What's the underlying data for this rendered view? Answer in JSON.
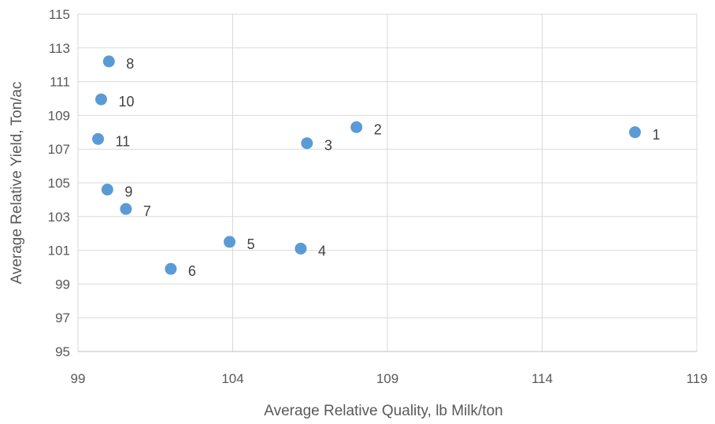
{
  "chart_data": {
    "type": "scatter",
    "title": "",
    "xlabel": "Average Relative Quality, lb Milk/ton",
    "ylabel": "Average Relative Yield, Ton/ac",
    "xlim": [
      99,
      119
    ],
    "ylim": [
      95,
      115
    ],
    "x_ticks": [
      99,
      104,
      109,
      114,
      119
    ],
    "y_ticks": [
      95,
      97,
      99,
      101,
      103,
      105,
      107,
      109,
      111,
      113,
      115
    ],
    "grid": true,
    "legend": "none",
    "marker_color": "#5b9bd5",
    "points": [
      {
        "label": "1",
        "x": 117.0,
        "y": 108.0
      },
      {
        "label": "2",
        "x": 108.0,
        "y": 108.3
      },
      {
        "label": "3",
        "x": 106.4,
        "y": 107.35
      },
      {
        "label": "4",
        "x": 106.2,
        "y": 101.1
      },
      {
        "label": "5",
        "x": 103.9,
        "y": 101.5
      },
      {
        "label": "6",
        "x": 102.0,
        "y": 99.9
      },
      {
        "label": "7",
        "x": 100.55,
        "y": 103.45
      },
      {
        "label": "8",
        "x": 100.0,
        "y": 112.2
      },
      {
        "label": "9",
        "x": 99.95,
        "y": 104.6
      },
      {
        "label": "10",
        "x": 99.75,
        "y": 109.95
      },
      {
        "label": "11",
        "x": 99.65,
        "y": 107.6
      }
    ]
  }
}
